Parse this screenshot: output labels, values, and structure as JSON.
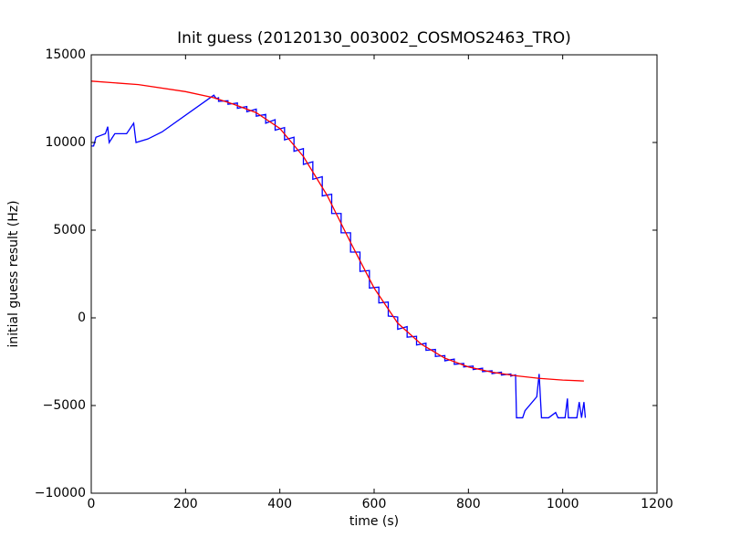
{
  "chart_data": {
    "type": "line",
    "title": "Init guess (20120130_003002_COSMOS2463_TRO)",
    "x_label": "time (s)",
    "y_label": "initial guess result (Hz)",
    "xlim": [
      0,
      1200
    ],
    "ylim": [
      -10000,
      15000
    ],
    "xticks": [
      0,
      200,
      400,
      600,
      800,
      1000,
      1200
    ],
    "yticks": [
      {
        "value": -10000,
        "label": "−10000"
      },
      {
        "value": -5000,
        "label": "−5000"
      },
      0,
      5000,
      10000,
      15000
    ],
    "series": [
      {
        "color": "#0000ff",
        "x": [
          0,
          5,
          10,
          20,
          30,
          35,
          38,
          50,
          75,
          90,
          95,
          120,
          150,
          260,
          265,
          270,
          270,
          290,
          290,
          310,
          310,
          330,
          330,
          350,
          350,
          370,
          370,
          390,
          390,
          410,
          410,
          430,
          430,
          450,
          450,
          470,
          470,
          490,
          490,
          510,
          510,
          530,
          530,
          550,
          550,
          570,
          570,
          590,
          590,
          610,
          610,
          630,
          630,
          650,
          650,
          670,
          670,
          690,
          690,
          710,
          710,
          730,
          730,
          750,
          750,
          770,
          770,
          790,
          790,
          810,
          810,
          830,
          830,
          850,
          850,
          870,
          870,
          890,
          890,
          900,
          902,
          915,
          920,
          945,
          950,
          955,
          970,
          985,
          990,
          1005,
          1010,
          1012,
          1030,
          1035,
          1040,
          1045,
          1048
        ],
        "values": [
          9800,
          9800,
          10300,
          10400,
          10500,
          10900,
          10000,
          10500,
          10500,
          11100,
          10000,
          10200,
          10600,
          12700,
          12500,
          12550,
          12350,
          12380,
          12180,
          12250,
          11950,
          12050,
          11750,
          11900,
          11500,
          11600,
          11100,
          11300,
          10700,
          10850,
          10150,
          10300,
          9500,
          9650,
          8750,
          8900,
          7900,
          8050,
          6950,
          7050,
          5950,
          5950,
          4850,
          4850,
          3750,
          3750,
          2650,
          2700,
          1700,
          1750,
          850,
          900,
          100,
          50,
          -650,
          -500,
          -1100,
          -1050,
          -1550,
          -1450,
          -1850,
          -1800,
          -2200,
          -2150,
          -2450,
          -2350,
          -2650,
          -2600,
          -2800,
          -2750,
          -2950,
          -2870,
          -3070,
          -3020,
          -3180,
          -3100,
          -3260,
          -3200,
          -3320,
          -3250,
          -5700,
          -5700,
          -5300,
          -4500,
          -3200,
          -5700,
          -5700,
          -5400,
          -5700,
          -5700,
          -4600,
          -5700,
          -5700,
          -4800,
          -5700,
          -4800,
          -5700
        ]
      },
      {
        "color": "#ff0000",
        "x": [
          0,
          100,
          200,
          260,
          300,
          350,
          400,
          450,
          500,
          550,
          600,
          650,
          700,
          750,
          800,
          850,
          900,
          950,
          1000,
          1045
        ],
        "values": [
          13500,
          13300,
          12900,
          12550,
          12200,
          11700,
          10800,
          9200,
          7000,
          4300,
          1700,
          -300,
          -1500,
          -2300,
          -2800,
          -3100,
          -3300,
          -3450,
          -3550,
          -3600
        ]
      }
    ]
  }
}
